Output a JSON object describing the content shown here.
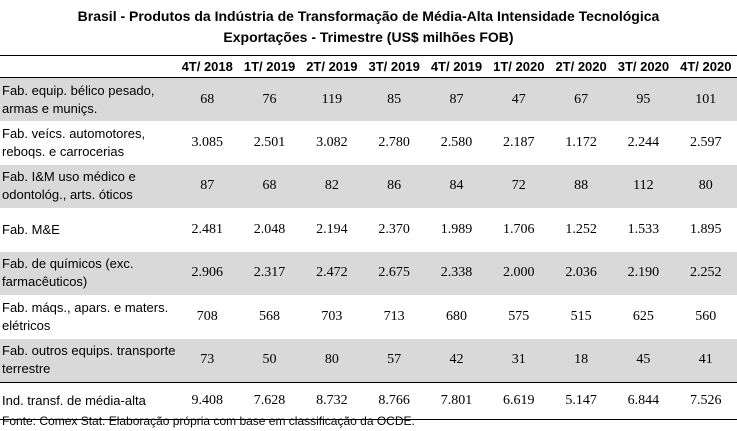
{
  "title_line1": "Brasil - Produtos da Indústria de Transformação de Média-Alta Intensidade Tecnológica",
  "title_line2": "Exportações - Trimestre (US$ milhões FOB)",
  "columns": [
    "4T/ 2018",
    "1T/ 2019",
    "2T/ 2019",
    "3T/ 2019",
    "4T/ 2019",
    "1T/ 2020",
    "2T/ 2020",
    "3T/ 2020",
    "4T/ 2020"
  ],
  "rows": [
    {
      "label": "Fab. equip. bélico pesado, armas e muniçs.",
      "values": [
        "68",
        "76",
        "119",
        "85",
        "87",
        "47",
        "67",
        "95",
        "101"
      ]
    },
    {
      "label": "Fab. veícs. automotores, reboqs. e carrocerias",
      "values": [
        "3.085",
        "2.501",
        "3.082",
        "2.780",
        "2.580",
        "2.187",
        "1.172",
        "2.244",
        "2.597"
      ]
    },
    {
      "label": "Fab. I&M uso médico e odontológ., arts. óticos",
      "values": [
        "87",
        "68",
        "82",
        "86",
        "84",
        "72",
        "88",
        "112",
        "80"
      ]
    },
    {
      "label": "Fab. M&E",
      "values": [
        "2.481",
        "2.048",
        "2.194",
        "2.370",
        "1.989",
        "1.706",
        "1.252",
        "1.533",
        "1.895"
      ]
    },
    {
      "label": "Fab. de químicos (exc. farmacêuticos)",
      "values": [
        "2.906",
        "2.317",
        "2.472",
        "2.675",
        "2.338",
        "2.000",
        "2.036",
        "2.190",
        "2.252"
      ]
    },
    {
      "label": "Fab. máqs., apars. e maters. elétricos",
      "values": [
        "708",
        "568",
        "703",
        "713",
        "680",
        "575",
        "515",
        "625",
        "560"
      ]
    },
    {
      "label": "Fab. outros equips. transporte terrestre",
      "values": [
        "73",
        "50",
        "80",
        "57",
        "42",
        "31",
        "18",
        "45",
        "41"
      ]
    }
  ],
  "total": {
    "label": "Ind. transf. de média-alta",
    "values": [
      "9.408",
      "7.628",
      "8.732",
      "8.766",
      "7.801",
      "6.619",
      "5.147",
      "6.844",
      "7.526"
    ]
  },
  "source": "Fonte: Comex Stat. Elaboração própria com base em classificação da OCDE."
}
